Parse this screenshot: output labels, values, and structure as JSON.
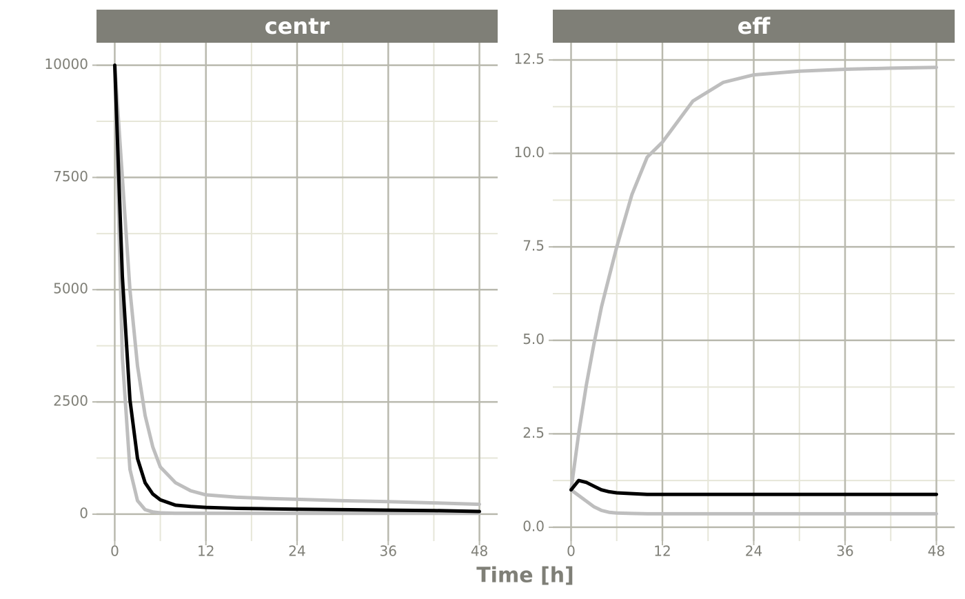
{
  "chart_data": [
    {
      "type": "line",
      "title": "centr",
      "xlabel": "Time [h]",
      "x": [
        0,
        1,
        2,
        3,
        4,
        5,
        6,
        8,
        10,
        12,
        16,
        20,
        24,
        30,
        36,
        42,
        48
      ],
      "series": [
        {
          "color": "#bebebe",
          "values": [
            10000,
            7500,
            5000,
            3300,
            2200,
            1500,
            1050,
            700,
            520,
            430,
            380,
            350,
            330,
            300,
            280,
            250,
            220
          ]
        },
        {
          "color": "#bebebe",
          "values": [
            10000,
            3500,
            1000,
            300,
            100,
            50,
            30,
            20,
            20,
            20,
            20,
            20,
            20,
            20,
            20,
            20,
            20
          ]
        },
        {
          "color": "#000000",
          "values": [
            10000,
            5300,
            2550,
            1240,
            700,
            450,
            320,
            200,
            170,
            150,
            130,
            120,
            110,
            100,
            90,
            80,
            60
          ]
        }
      ],
      "xlim": [
        -2.4,
        50.4
      ],
      "ylim": [
        -600,
        10500
      ],
      "xticks": [
        0,
        12,
        24,
        36,
        48
      ],
      "yticks": [
        0,
        2500,
        5000,
        7500,
        10000
      ],
      "minor_xticks": [
        6,
        18,
        30,
        42
      ],
      "minor_yticks": [
        1250,
        3750,
        6250,
        8750
      ],
      "grid": true
    },
    {
      "type": "line",
      "title": "eff",
      "x": [
        0,
        1,
        2,
        3,
        4,
        5,
        6,
        8,
        10,
        12,
        16,
        20,
        24,
        30,
        36,
        42,
        48
      ],
      "series": [
        {
          "color": "#bebebe",
          "values": [
            1,
            2.5,
            3.8,
            4.9,
            5.9,
            6.7,
            7.5,
            8.9,
            9.9,
            10.3,
            11.4,
            11.9,
            12.1,
            12.2,
            12.25,
            12.28,
            12.3
          ]
        },
        {
          "color": "#bebebe",
          "values": [
            1,
            0.85,
            0.7,
            0.55,
            0.45,
            0.4,
            0.38,
            0.37,
            0.36,
            0.36,
            0.36,
            0.36,
            0.36,
            0.36,
            0.36,
            0.36,
            0.36
          ]
        },
        {
          "color": "#000000",
          "values": [
            1,
            1.25,
            1.2,
            1.1,
            1.0,
            0.95,
            0.92,
            0.9,
            0.88,
            0.88,
            0.88,
            0.88,
            0.88,
            0.88,
            0.88,
            0.88,
            0.88
          ]
        }
      ],
      "xlim": [
        -2.4,
        50.4
      ],
      "ylim": [
        -0.37,
        12.96
      ],
      "xticks": [
        0,
        12,
        24,
        36,
        48
      ],
      "yticks": [
        {
          "value": 0,
          "label": "0.0"
        },
        2.5,
        {
          "value": 5,
          "label": "5.0"
        },
        7.5,
        {
          "value": 10,
          "label": "10.0"
        },
        12.5
      ],
      "minor_xticks": [
        6,
        18,
        30,
        42
      ],
      "minor_yticks": [
        1.25,
        3.75,
        6.25,
        8.75,
        11.25
      ],
      "grid": true
    }
  ]
}
